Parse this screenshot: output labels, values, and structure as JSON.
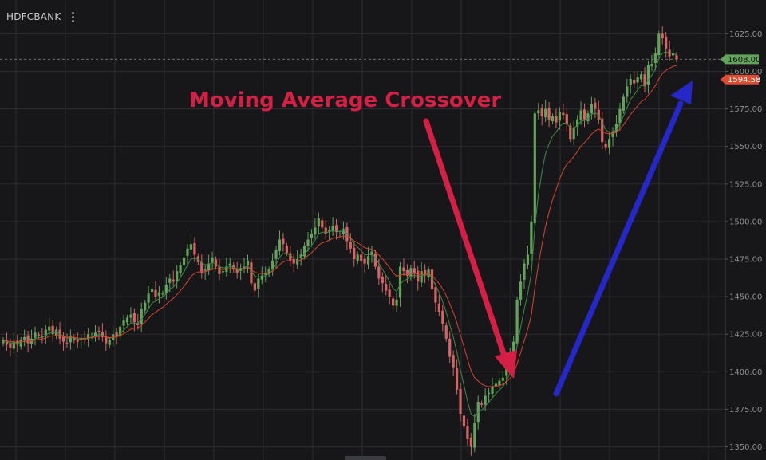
{
  "header": {
    "symbol": "HDFCBANK",
    "menu_icon": "vertical-dots-icon"
  },
  "colors": {
    "background": "#171719",
    "grid": "#2a2c31",
    "up_candle": "#63a35c",
    "down_candle": "#d66464",
    "ma_fast": "#3f8a44",
    "ma_slow": "#d8432d",
    "annotation_text": "#d51f45",
    "arrow_red": "#d51f45",
    "arrow_blue": "#2528c8",
    "last_price_badge": "#63a35c",
    "ma_badge": "#e04a30",
    "axis_text": "#8c8f94"
  },
  "annotations": {
    "title": "Moving Average Crossover",
    "red_arrow": "arrow-down",
    "blue_arrow": "arrow-up"
  },
  "chart_data": {
    "type": "candlestick",
    "title": "",
    "xlabel": "",
    "ylabel": "",
    "ylim": [
      1345,
      1640
    ],
    "y_ticks": [
      "1350.00",
      "1375.00",
      "1400.00",
      "1425.00",
      "1450.00",
      "1475.00",
      "1500.00",
      "1525.00",
      "1550.00",
      "1575.00",
      "1600.00",
      "1625.00"
    ],
    "last_price": "1608.00",
    "ma_value": "1594.58",
    "closes": [
      1421,
      1418,
      1416,
      1420,
      1418,
      1421,
      1423,
      1419,
      1422,
      1426,
      1424,
      1423,
      1428,
      1430,
      1425,
      1428,
      1422,
      1420,
      1419,
      1424,
      1421,
      1420,
      1422,
      1421,
      1425,
      1424,
      1426,
      1427,
      1423,
      1419,
      1421,
      1425,
      1424,
      1430,
      1434,
      1436,
      1438,
      1433,
      1431,
      1442,
      1446,
      1452,
      1455,
      1450,
      1453,
      1452,
      1458,
      1462,
      1460,
      1467,
      1471,
      1476,
      1482,
      1485,
      1478,
      1473,
      1466,
      1468,
      1472,
      1476,
      1470,
      1465,
      1467,
      1470,
      1472,
      1468,
      1466,
      1469,
      1470,
      1474,
      1459,
      1454,
      1462,
      1464,
      1466,
      1468,
      1474,
      1481,
      1488,
      1485,
      1479,
      1474,
      1472,
      1475,
      1478,
      1484,
      1488,
      1492,
      1496,
      1502,
      1496,
      1492,
      1494,
      1497,
      1493,
      1492,
      1495,
      1487,
      1482,
      1475,
      1478,
      1474,
      1472,
      1477,
      1480,
      1470,
      1462,
      1459,
      1454,
      1450,
      1444,
      1448,
      1470,
      1467,
      1464,
      1469,
      1466,
      1460,
      1467,
      1464,
      1468,
      1455,
      1446,
      1440,
      1432,
      1422,
      1410,
      1403,
      1388,
      1372,
      1364,
      1355,
      1350,
      1366,
      1380,
      1378,
      1384,
      1386,
      1390,
      1392,
      1394,
      1396,
      1405,
      1410,
      1420,
      1448,
      1460,
      1472,
      1478,
      1500,
      1572,
      1574,
      1570,
      1575,
      1568,
      1570,
      1566,
      1573,
      1571,
      1565,
      1555,
      1562,
      1568,
      1574,
      1568,
      1572,
      1578,
      1575,
      1568,
      1553,
      1549,
      1555,
      1560,
      1565,
      1575,
      1583,
      1590,
      1595,
      1592,
      1596,
      1598,
      1590,
      1604,
      1605,
      1612,
      1625,
      1622,
      1615,
      1610,
      1612,
      1608
    ]
  }
}
